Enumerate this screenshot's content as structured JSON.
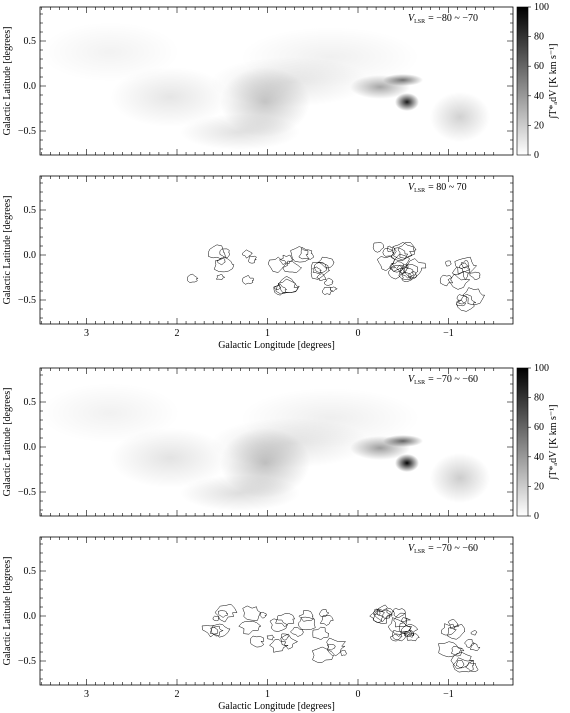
{
  "figure": {
    "panels": [
      {
        "kind": "map",
        "velocity": {
          "symbol": "V",
          "subscript": "LSR",
          "range": "= −80 ~ −70"
        },
        "y_label": "Galactic Latitude [degrees]",
        "y_ticks": [
          "0.5",
          "0.0",
          "−0.5"
        ],
        "colorbar": {
          "ticks": [
            "100",
            "80",
            "60",
            "40",
            "20",
            "0"
          ],
          "label": "∫T*ₐdV [K km s⁻¹]"
        }
      },
      {
        "kind": "contour",
        "velocity": {
          "symbol": "V",
          "subscript": "LSR",
          "range": "= 80 ~ 70"
        },
        "y_label": "Galactic Latitude [degrees]",
        "y_ticks": [
          "0.5",
          "0.0",
          "−0.5"
        ],
        "x_ticks": [
          "3",
          "2",
          "1",
          "0",
          "−1"
        ],
        "x_label": "Galactic Longitude [degrees]"
      },
      {
        "kind": "map",
        "velocity": {
          "symbol": "V",
          "subscript": "LSR",
          "range": "= −70 ~ −60"
        },
        "y_label": "Galactic Latitude [degrees]",
        "y_ticks": [
          "0.5",
          "0.0",
          "−0.5"
        ],
        "colorbar": {
          "ticks": [
            "100",
            "80",
            "60",
            "40",
            "20",
            "0"
          ],
          "label": "∫T*ₐdV [K km s⁻¹]"
        }
      },
      {
        "kind": "contour",
        "velocity": {
          "symbol": "V",
          "subscript": "LSR",
          "range": "= −70 ~ −60"
        },
        "y_label": "Galactic Latitude [degrees]",
        "y_ticks": [
          "0.5",
          "0.0",
          "−0.5"
        ],
        "x_ticks": [
          "3",
          "2",
          "1",
          "0",
          "−1"
        ],
        "x_label": "Galactic Longitude [degrees]"
      }
    ]
  }
}
